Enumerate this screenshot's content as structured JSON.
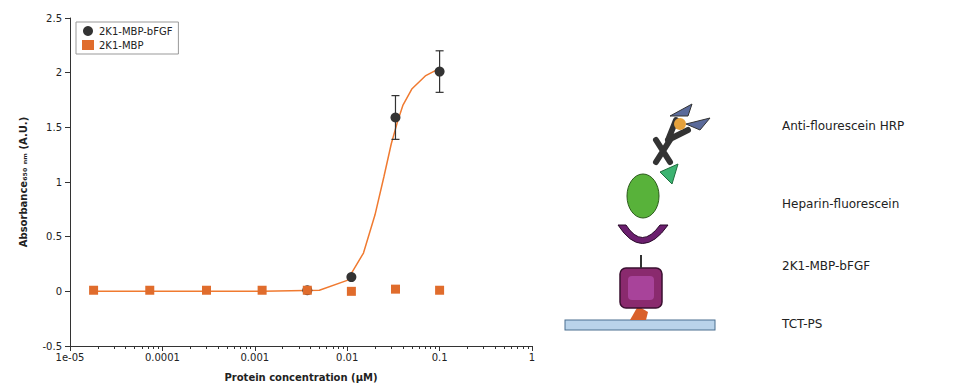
{
  "chart_data": {
    "type": "scatter",
    "xlabel": "Protein concentration (μM)",
    "ylabel": "Absorbance₆₅₀ ₙₘ (A.U.)",
    "log": "x",
    "grid": false,
    "legend": "upper left",
    "xlim": [
      1e-05,
      1
    ],
    "xticks": [
      {
        "value": 1e-05,
        "label": "1e-05"
      },
      0.0001,
      0.001,
      0.01,
      0.1,
      1
    ],
    "ylim": [
      -0.5,
      2.5
    ],
    "yticks": [
      -0.5,
      0,
      0.5,
      1,
      1.5,
      2,
      2.5
    ],
    "series": [
      {
        "name": "2K1-MBP-bFGF",
        "type": "scatter",
        "marker": "circle",
        "color": "#333333",
        "x": [
          0.0037,
          0.0111,
          0.0333,
          0.1
        ],
        "values": [
          0.01,
          0.13,
          1.59,
          2.01
        ],
        "errors": [
          0,
          0,
          0.2,
          0.19
        ]
      },
      {
        "name": "2K1-MBP",
        "type": "scatter",
        "marker": "square",
        "color": "#e06c2c",
        "x": [
          1.8e-05,
          7.3e-05,
          0.0003,
          0.0012,
          0.0037,
          0.0111,
          0.0333,
          0.1
        ],
        "values": [
          0.01,
          0.01,
          0.01,
          0.01,
          0.01,
          0.0,
          0.02,
          0.01
        ]
      },
      {
        "type": "line",
        "line_style": "solid",
        "color": "#f07a30",
        "x": [
          1.8e-05,
          0.0012,
          0.005,
          0.01,
          0.015,
          0.02,
          0.025,
          0.03,
          0.035,
          0.04,
          0.05,
          0.07,
          0.1
        ],
        "values": [
          0.0,
          0.0,
          0.01,
          0.1,
          0.35,
          0.7,
          1.05,
          1.35,
          1.55,
          1.7,
          1.85,
          1.97,
          2.04
        ]
      }
    ]
  },
  "diagram": {
    "labels": [
      "Anti-flourescein HRP",
      "Heparin-fluorescein",
      "2K1-MBP-bFGF",
      "TCT-PS"
    ]
  }
}
